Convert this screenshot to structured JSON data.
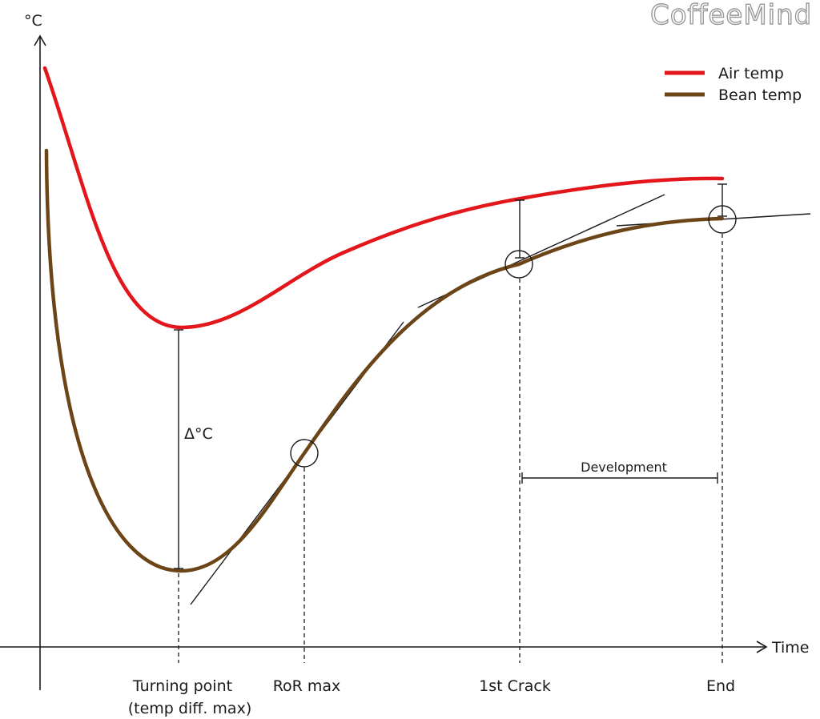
{
  "brand": {
    "logo_text": "CoffeeMind"
  },
  "chart_data": {
    "type": "line",
    "title": "",
    "xlabel": "Time",
    "ylabel": "°C",
    "grid": false,
    "legend_position": "top-right",
    "series": [
      {
        "name": "Air temp",
        "color": "#e3161b"
      },
      {
        "name": "Bean temp",
        "color": "#6b4517"
      }
    ],
    "events": [
      {
        "name": "turning_point",
        "label": "Turning point",
        "sublabel": "(temp diff. max)"
      },
      {
        "name": "ror_max",
        "label": "RoR max"
      },
      {
        "name": "first_crack",
        "label": "1st Crack"
      },
      {
        "name": "end",
        "label": "End"
      }
    ],
    "annotations": {
      "delta": "Δ°C",
      "development": "Development"
    }
  }
}
